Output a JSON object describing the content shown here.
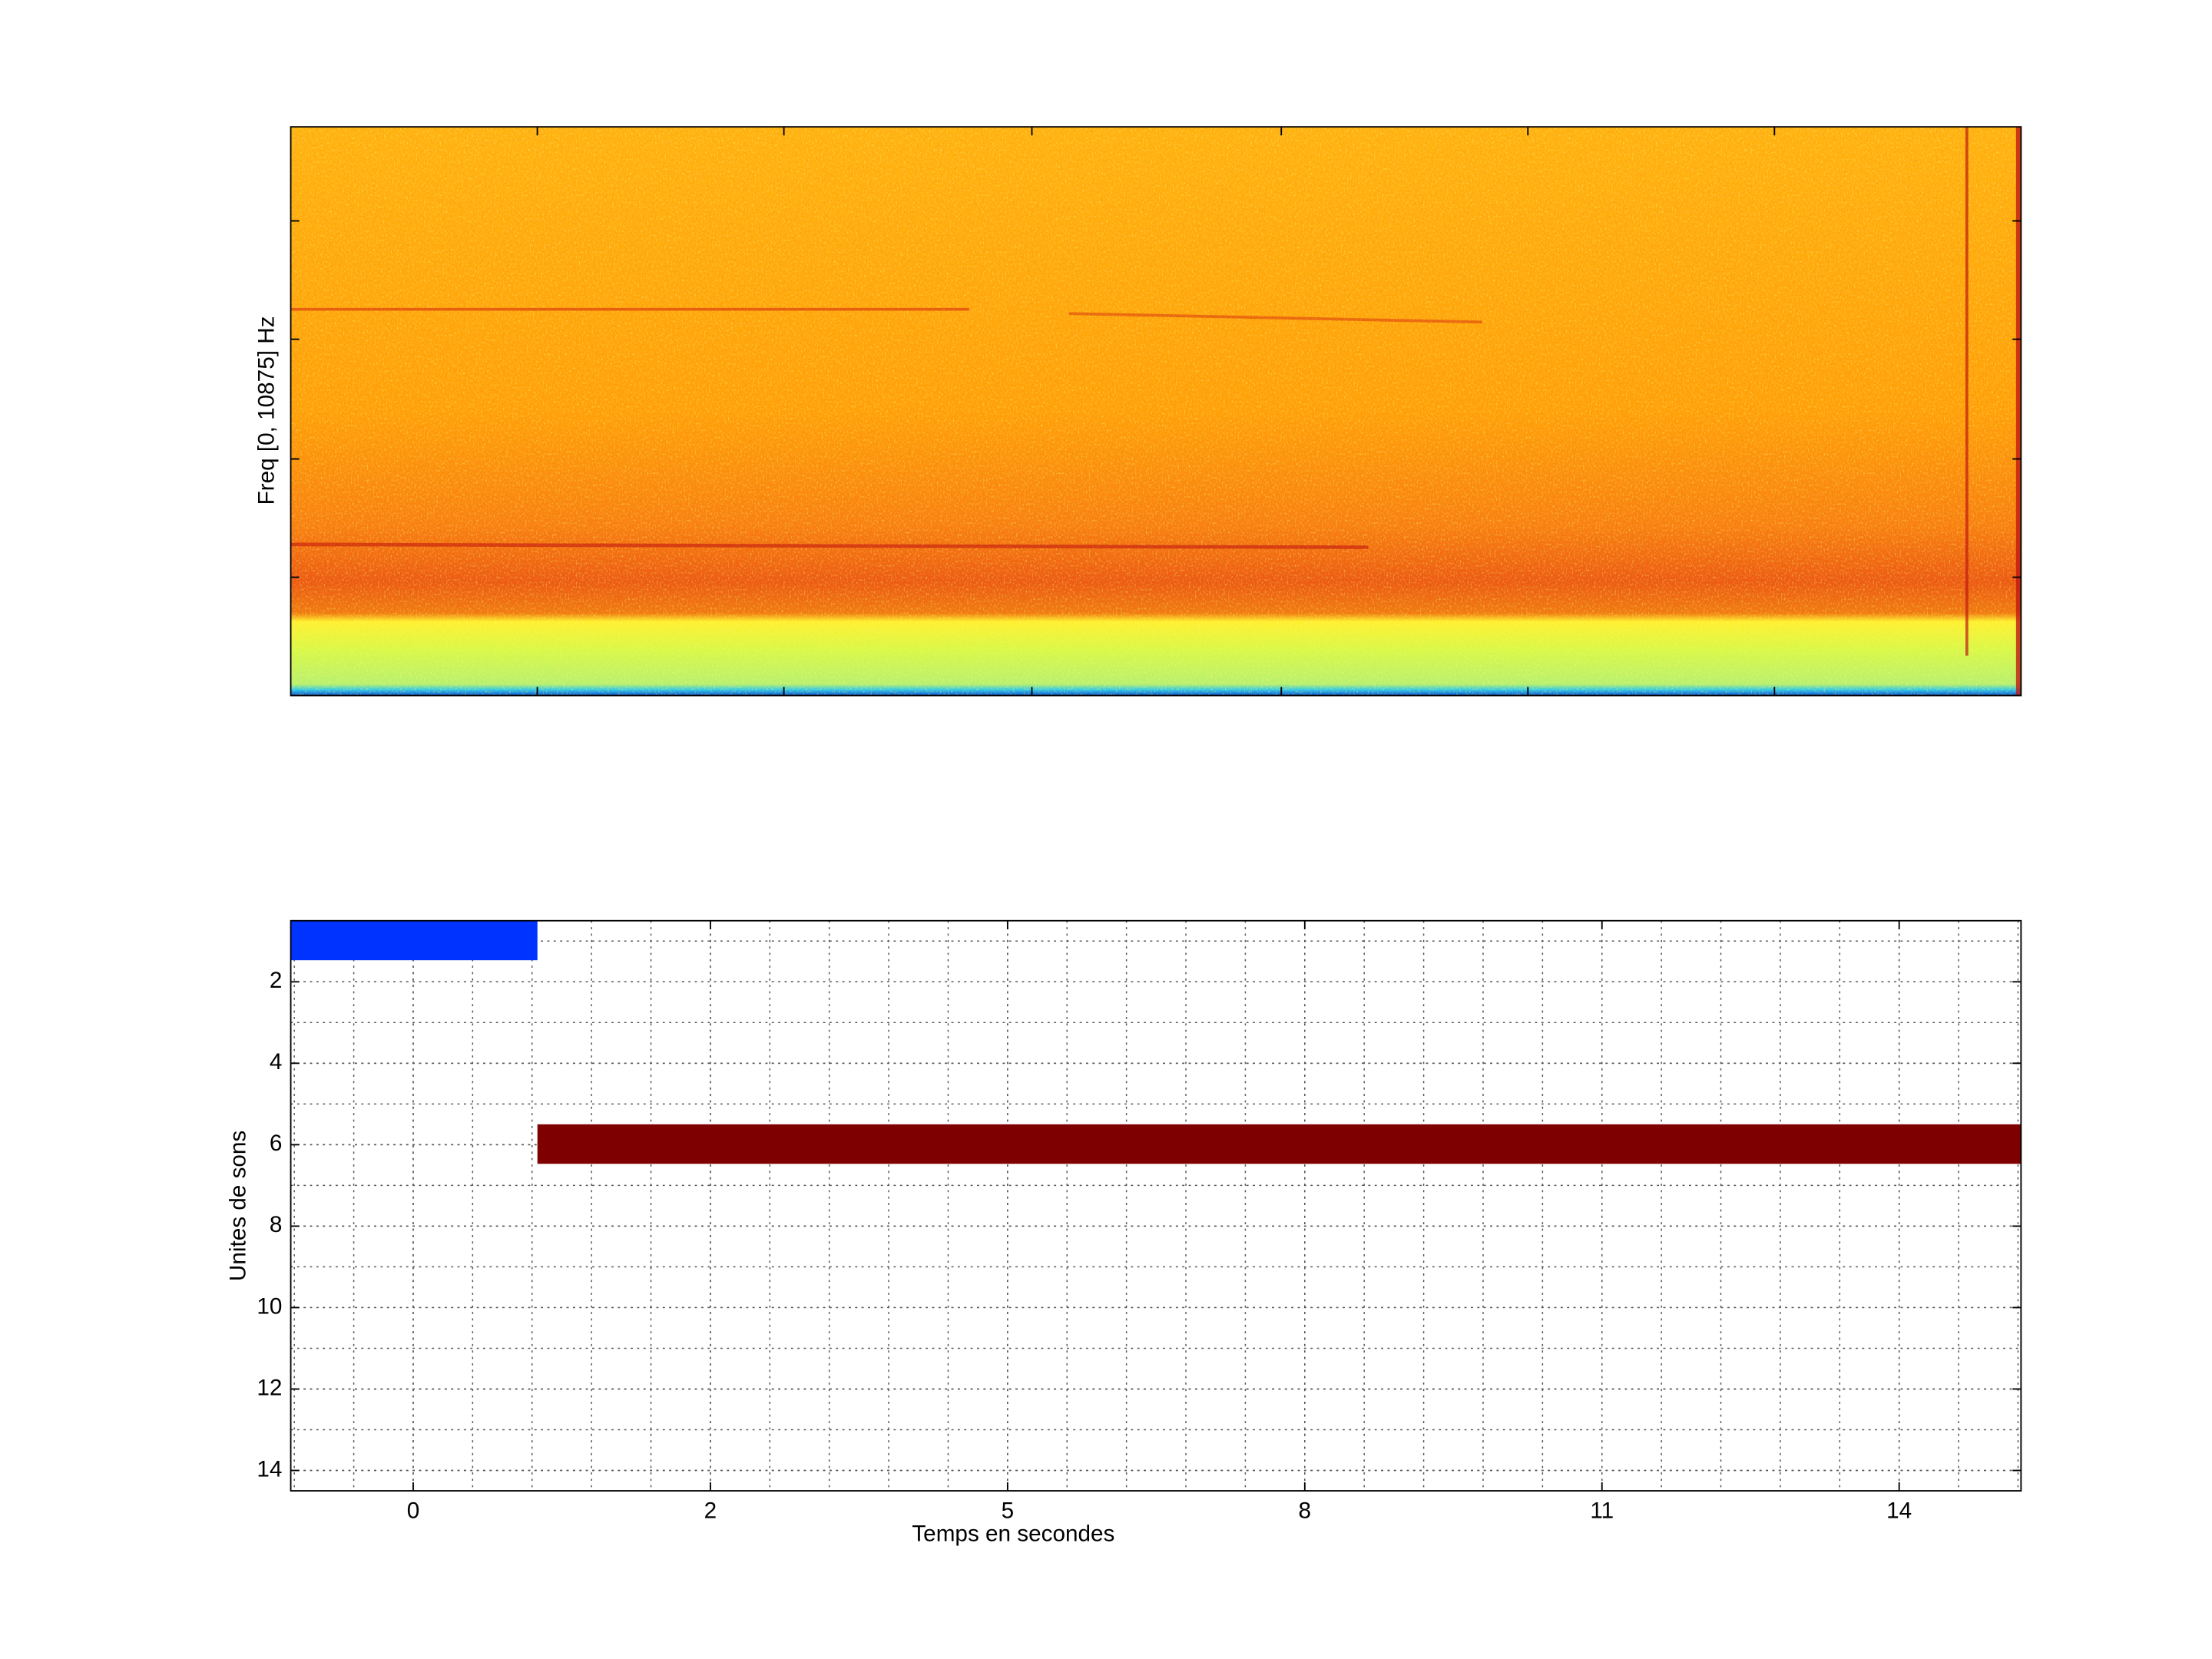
{
  "chart_data": [
    {
      "type": "spectrogram",
      "ylabel": "Freq [0, 10875] Hz"
    },
    {
      "type": "timeline",
      "xlabel": "Temps en secondes",
      "ylabel": "Unites de sons",
      "xlim": [
        -1.06,
        28.05
      ],
      "ylim": [
        0.5,
        14.5
      ],
      "y_reversed": true,
      "xticks": [
        {
          "value": 1,
          "label": "0"
        },
        {
          "value": 6,
          "label": "2"
        },
        {
          "value": 11,
          "label": "5"
        },
        {
          "value": 16,
          "label": "8"
        },
        {
          "value": 21,
          "label": "11"
        },
        {
          "value": 26,
          "label": "14"
        }
      ],
      "yticks": [
        2,
        4,
        6,
        8,
        10,
        12,
        14
      ],
      "grid": true,
      "minor_grid": true,
      "bars": [
        {
          "color": "#0033ff",
          "row": 1,
          "start": -1.06,
          "end": 3.09
        },
        {
          "color": "#7f0000",
          "row": 6,
          "start": 3.09,
          "end": 28.05
        }
      ]
    }
  ]
}
